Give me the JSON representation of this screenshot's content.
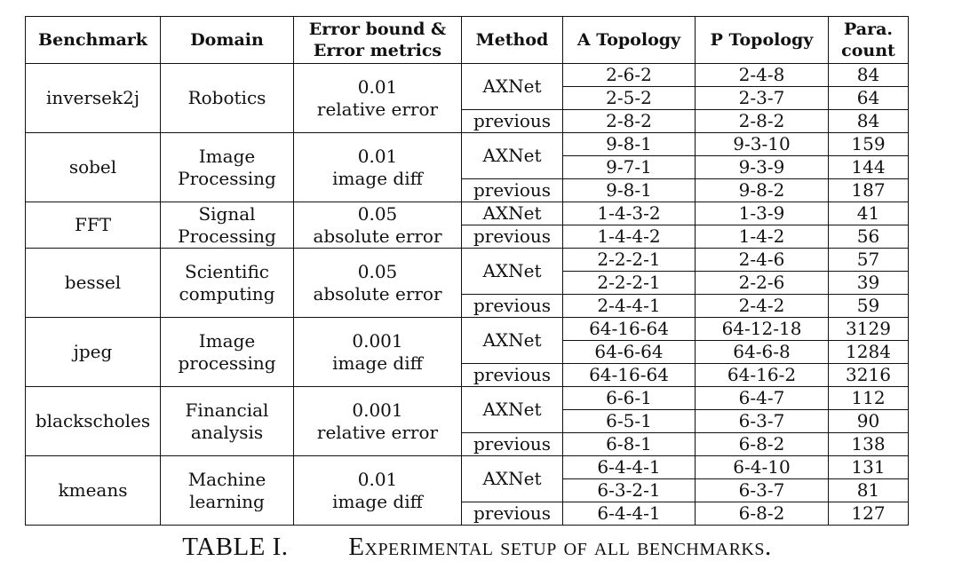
{
  "headers": [
    "Benchmark",
    "Domain",
    "Error bound &\nError metrics",
    "Method",
    "A Topology",
    "P Topology",
    "Para.\ncount"
  ],
  "benchmarks": [
    {
      "name": "inversek2j",
      "domain": "Robotics",
      "error": "0.01\nrelative error",
      "methods": [
        {
          "method": "AXNet",
          "rows": [
            [
              "2-6-2",
              "2-4-8",
              "84"
            ],
            [
              "2-5-2",
              "2-3-7",
              "64"
            ]
          ]
        },
        {
          "method": "previous",
          "rows": [
            [
              "2-8-2",
              "2-8-2",
              "84"
            ]
          ]
        }
      ]
    },
    {
      "name": "sobel",
      "domain": "Image\nProcessing",
      "error": "0.01\nimage diff",
      "methods": [
        {
          "method": "AXNet",
          "rows": [
            [
              "9-8-1",
              "9-3-10",
              "159"
            ],
            [
              "9-7-1",
              "9-3-9",
              "144"
            ]
          ]
        },
        {
          "method": "previous",
          "rows": [
            [
              "9-8-1",
              "9-8-2",
              "187"
            ]
          ]
        }
      ]
    },
    {
      "name": "FFT",
      "domain": "Signal\nProcessing",
      "error": "0.05\nabsolute error",
      "methods": [
        {
          "method": "AXNet",
          "rows": [
            [
              "1-4-3-2",
              "1-3-9",
              "41"
            ]
          ]
        },
        {
          "method": "previous",
          "rows": [
            [
              "1-4-4-2",
              "1-4-2",
              "56"
            ]
          ]
        }
      ]
    },
    {
      "name": "bessel",
      "domain": "Scientific\ncomputing",
      "error": "0.05\nabsolute error",
      "methods": [
        {
          "method": "AXNet",
          "rows": [
            [
              "2-2-2-1",
              "2-4-6",
              "57"
            ],
            [
              "2-2-2-1",
              "2-2-6",
              "39"
            ]
          ]
        },
        {
          "method": "previous",
          "rows": [
            [
              "2-4-4-1",
              "2-4-2",
              "59"
            ]
          ]
        }
      ]
    },
    {
      "name": "jpeg",
      "domain": "Image\nprocessing",
      "error": "0.001\nimage diff",
      "methods": [
        {
          "method": "AXNet",
          "rows": [
            [
              "64-16-64",
              "64-12-18",
              "3129"
            ],
            [
              "64-6-64",
              "64-6-8",
              "1284"
            ]
          ]
        },
        {
          "method": "previous",
          "rows": [
            [
              "64-16-64",
              "64-16-2",
              "3216"
            ]
          ]
        }
      ]
    },
    {
      "name": "blackscholes",
      "domain": "Financial\nanalysis",
      "error": "0.001\nrelative error",
      "methods": [
        {
          "method": "AXNet",
          "rows": [
            [
              "6-6-1",
              "6-4-7",
              "112"
            ],
            [
              "6-5-1",
              "6-3-7",
              "90"
            ]
          ]
        },
        {
          "method": "previous",
          "rows": [
            [
              "6-8-1",
              "6-8-2",
              "138"
            ]
          ]
        }
      ]
    },
    {
      "name": "kmeans",
      "domain": "Machine\nlearning",
      "error": "0.01\nimage diff",
      "methods": [
        {
          "method": "AXNet",
          "rows": [
            [
              "6-4-4-1",
              "6-4-10",
              "131"
            ],
            [
              "6-3-2-1",
              "6-3-7",
              "81"
            ]
          ]
        },
        {
          "method": "previous",
          "rows": [
            [
              "6-4-4-1",
              "6-8-2",
              "127"
            ]
          ]
        }
      ]
    }
  ],
  "caption": {
    "label": "TABLE I.",
    "title": "Experimental setup of all benchmarks."
  }
}
